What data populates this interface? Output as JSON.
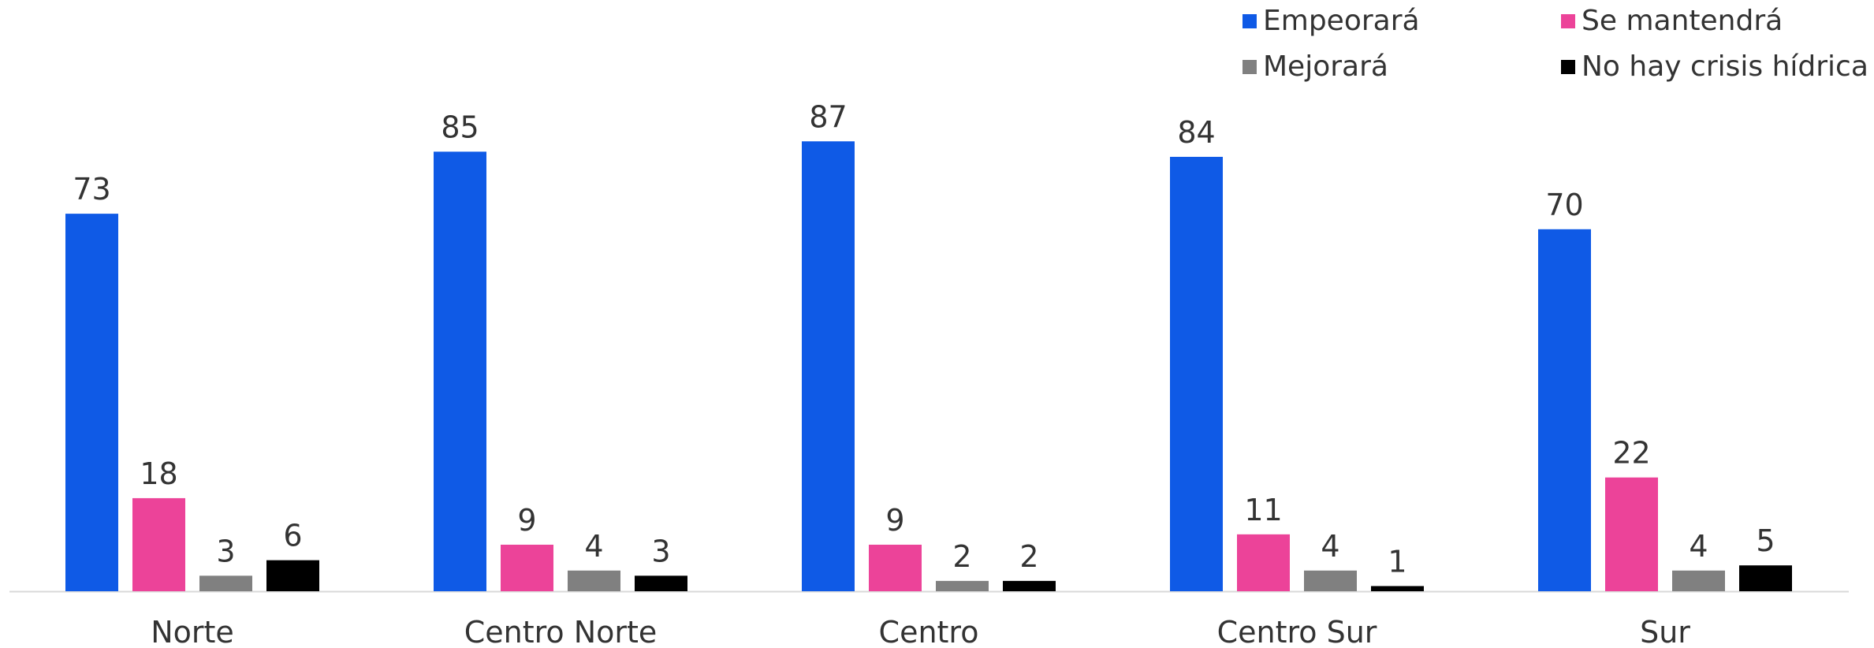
{
  "chart_data": {
    "type": "bar",
    "title": "",
    "xlabel": "",
    "ylabel": "",
    "ylim": [
      0,
      100
    ],
    "grid": false,
    "legend_position": "top-right",
    "categories": [
      "Norte",
      "Centro Norte",
      "Centro",
      "Centro Sur",
      "Sur"
    ],
    "series": [
      {
        "name": "Empeorará",
        "color": "#0f5ae6",
        "values": [
          73,
          85,
          87,
          84,
          70
        ]
      },
      {
        "name": "Se mantendrá",
        "color": "#ec4399",
        "values": [
          18,
          9,
          9,
          11,
          22
        ]
      },
      {
        "name": "Mejorará",
        "color": "#808080",
        "values": [
          3,
          4,
          2,
          4,
          4
        ]
      },
      {
        "name": "No hay crisis hídrica",
        "color": "#000000",
        "values": [
          6,
          3,
          2,
          1,
          5
        ]
      }
    ]
  }
}
